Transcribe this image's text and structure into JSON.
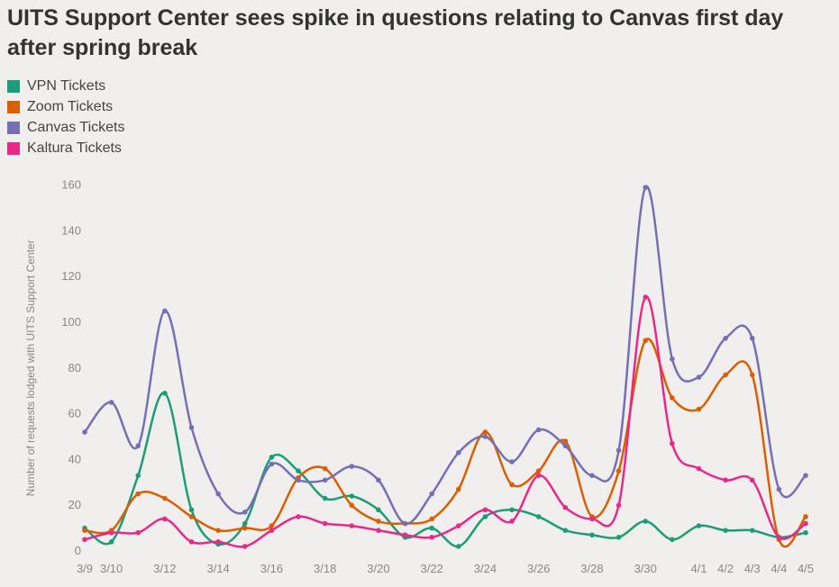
{
  "chart_data": {
    "type": "line",
    "title": "UITS Support Center sees spike in questions relating to Canvas first day after spring break",
    "ylabel": "Number of requests lodged with UITS Support Center",
    "xlabel": "",
    "ylim": [
      0,
      165
    ],
    "y_ticks": [
      0,
      20,
      40,
      60,
      80,
      100,
      120,
      140,
      160
    ],
    "x_ticks": [
      "3/9",
      "3/10",
      "3/12",
      "3/14",
      "3/16",
      "3/18",
      "3/20",
      "3/22",
      "3/24",
      "3/26",
      "3/28",
      "3/30",
      "4/1",
      "4/2",
      "4/3",
      "4/4",
      "4/5"
    ],
    "x": [
      "3/9",
      "3/10",
      "3/11",
      "3/12",
      "3/13",
      "3/14",
      "3/15",
      "3/16",
      "3/17",
      "3/18",
      "3/19",
      "3/20",
      "3/21",
      "3/22",
      "3/23",
      "3/24",
      "3/25",
      "3/26",
      "3/27",
      "3/28",
      "3/29",
      "3/30",
      "3/31",
      "4/1",
      "4/2",
      "4/3",
      "4/4",
      "4/5"
    ],
    "legend_position": "top-left",
    "grid": false,
    "series": [
      {
        "name": "VPN Tickets",
        "color": "#1b9e77",
        "values": [
          10,
          4,
          33,
          69,
          18,
          3,
          12,
          41,
          35,
          23,
          24,
          18,
          6,
          10,
          2,
          15,
          18,
          15,
          9,
          7,
          6,
          13,
          5,
          11,
          9,
          9,
          6,
          8
        ]
      },
      {
        "name": "Zoom Tickets",
        "color": "#d95f02",
        "values": [
          9,
          9,
          25,
          23,
          15,
          9,
          10,
          11,
          32,
          36,
          20,
          13,
          12,
          14,
          27,
          52,
          29,
          35,
          48,
          15,
          35,
          92,
          67,
          62,
          77,
          77,
          5,
          15
        ]
      },
      {
        "name": "Canvas Tickets",
        "color": "#7570b3",
        "values": [
          52,
          65,
          46,
          105,
          54,
          25,
          17,
          38,
          31,
          31,
          37,
          31,
          12,
          25,
          43,
          50,
          39,
          53,
          46,
          33,
          44,
          159,
          84,
          76,
          93,
          93,
          27,
          33
        ]
      },
      {
        "name": "Kaltura Tickets",
        "color": "#e7298a",
        "values": [
          5,
          8,
          8,
          14,
          4,
          4,
          2,
          9,
          15,
          12,
          11,
          9,
          7,
          6,
          11,
          18,
          13,
          33,
          19,
          14,
          20,
          111,
          47,
          36,
          31,
          31,
          6,
          12
        ]
      }
    ]
  }
}
